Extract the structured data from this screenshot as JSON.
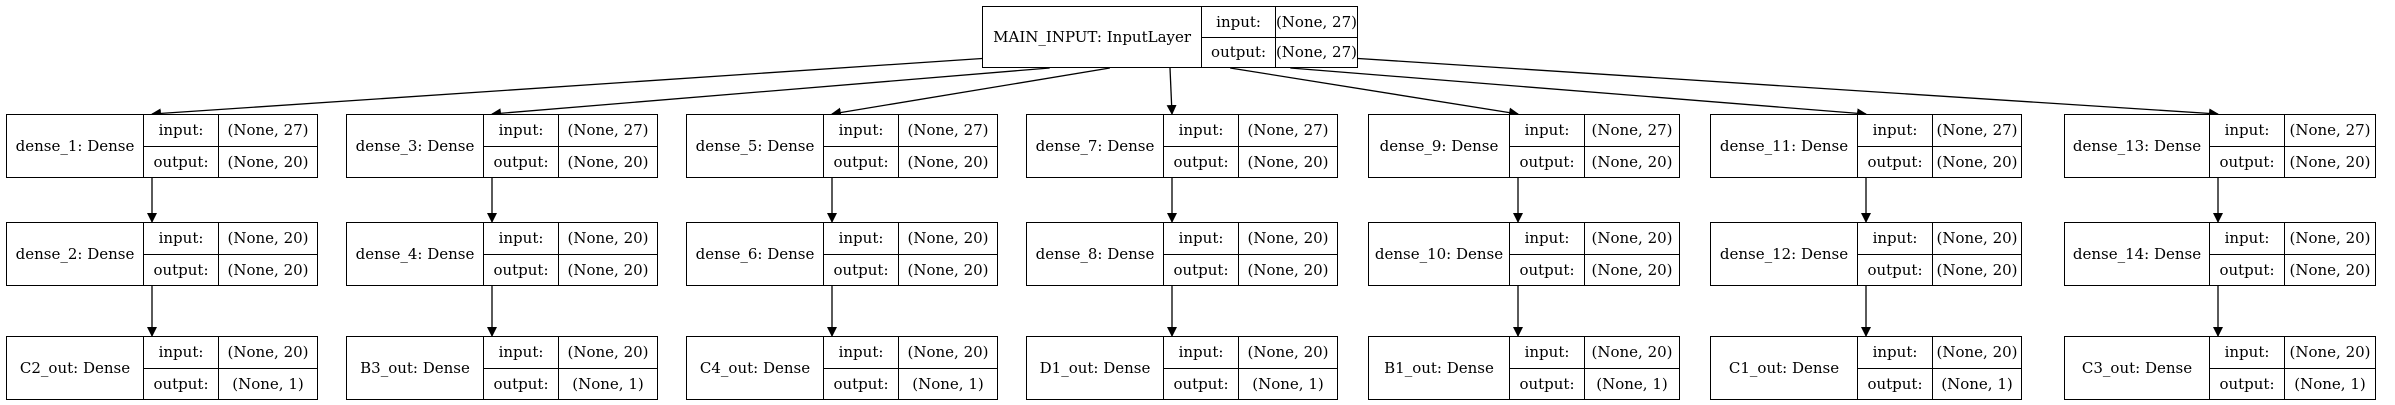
{
  "labels": {
    "input": "input:",
    "output": "output:"
  },
  "input_layer": {
    "name": "MAIN_INPUT: InputLayer",
    "input": "(None, 27)",
    "output": "(None, 27)"
  },
  "columns": [
    [
      {
        "name": "dense_1: Dense",
        "input": "(None, 27)",
        "output": "(None, 20)"
      },
      {
        "name": "dense_2: Dense",
        "input": "(None, 20)",
        "output": "(None, 20)"
      },
      {
        "name": "C2_out: Dense",
        "input": "(None, 20)",
        "output": "(None, 1)"
      }
    ],
    [
      {
        "name": "dense_3: Dense",
        "input": "(None, 27)",
        "output": "(None, 20)"
      },
      {
        "name": "dense_4: Dense",
        "input": "(None, 20)",
        "output": "(None, 20)"
      },
      {
        "name": "B3_out: Dense",
        "input": "(None, 20)",
        "output": "(None, 1)"
      }
    ],
    [
      {
        "name": "dense_5: Dense",
        "input": "(None, 27)",
        "output": "(None, 20)"
      },
      {
        "name": "dense_6: Dense",
        "input": "(None, 20)",
        "output": "(None, 20)"
      },
      {
        "name": "C4_out: Dense",
        "input": "(None, 20)",
        "output": "(None, 1)"
      }
    ],
    [
      {
        "name": "dense_7: Dense",
        "input": "(None, 27)",
        "output": "(None, 20)"
      },
      {
        "name": "dense_8: Dense",
        "input": "(None, 20)",
        "output": "(None, 20)"
      },
      {
        "name": "D1_out: Dense",
        "input": "(None, 20)",
        "output": "(None, 1)"
      }
    ],
    [
      {
        "name": "dense_9: Dense",
        "input": "(None, 27)",
        "output": "(None, 20)"
      },
      {
        "name": "dense_10: Dense",
        "input": "(None, 20)",
        "output": "(None, 20)"
      },
      {
        "name": "B1_out: Dense",
        "input": "(None, 20)",
        "output": "(None, 1)"
      }
    ],
    [
      {
        "name": "dense_11: Dense",
        "input": "(None, 27)",
        "output": "(None, 20)"
      },
      {
        "name": "dense_12: Dense",
        "input": "(None, 20)",
        "output": "(None, 20)"
      },
      {
        "name": "C1_out: Dense",
        "input": "(None, 20)",
        "output": "(None, 1)"
      }
    ],
    [
      {
        "name": "dense_13: Dense",
        "input": "(None, 27)",
        "output": "(None, 20)"
      },
      {
        "name": "dense_14: Dense",
        "input": "(None, 20)",
        "output": "(None, 20)"
      },
      {
        "name": "C3_out: Dense",
        "input": "(None, 20)",
        "output": "(None, 1)"
      }
    ]
  ]
}
